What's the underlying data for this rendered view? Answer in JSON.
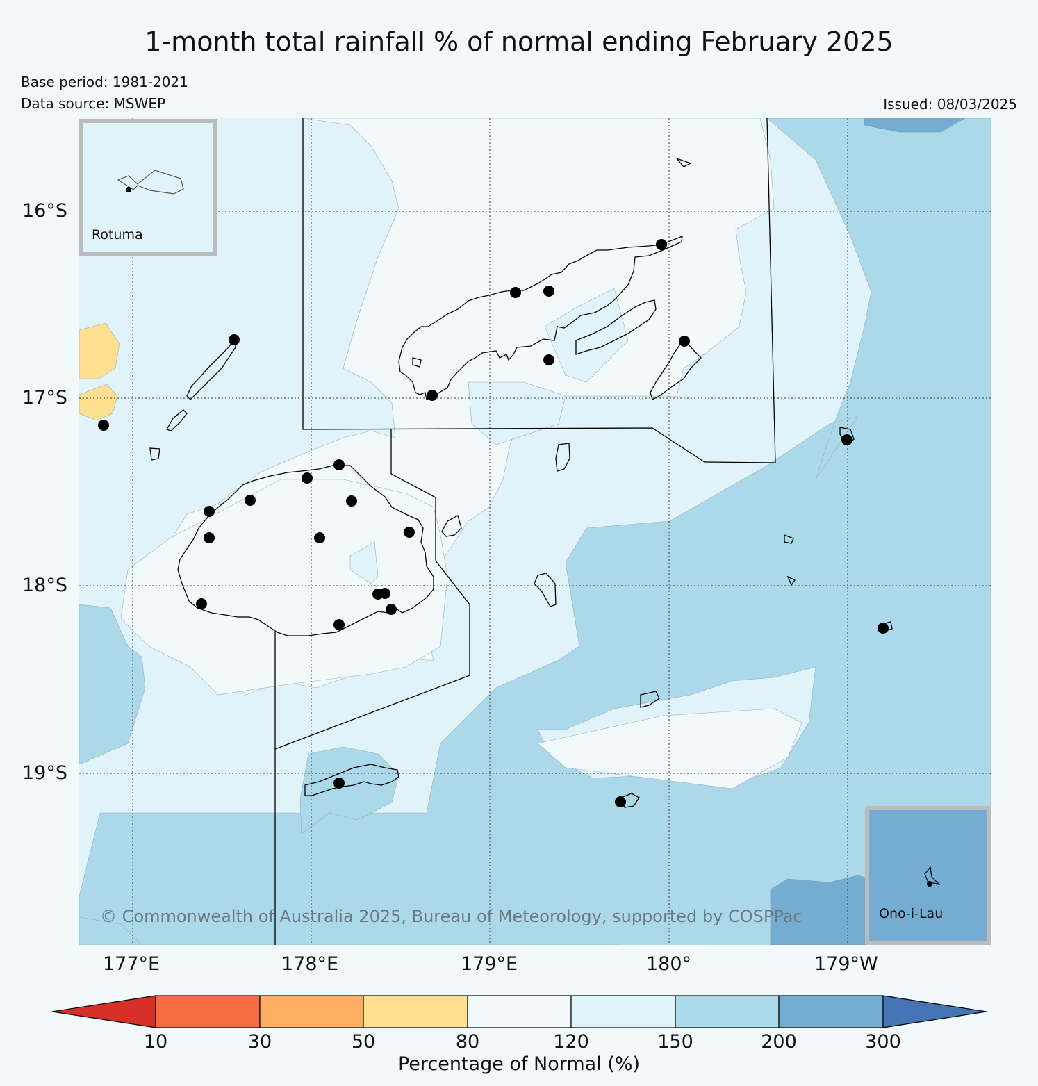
{
  "title": "1-month total rainfall % of normal ending February 2025",
  "base_period": "Base period: 1981-2021",
  "data_source": "Data source: MSWEP",
  "issued": "Issued: 08/03/2025",
  "copyright": "© Commonwealth of Australia 2025, Bureau of Meteorology, supported by COSPPac",
  "lat_labels": [
    "16°S",
    "17°S",
    "18°S",
    "19°S"
  ],
  "lon_labels": [
    "177°E",
    "178°E",
    "179°E",
    "180°",
    "179°W"
  ],
  "insets": {
    "rotuma": "Rotuma",
    "ono_i_lau": "Ono-i-Lau"
  },
  "colorbar": {
    "title": "Percentage of Normal (%)",
    "ticks": [
      "10",
      "30",
      "50",
      "80",
      "120",
      "150",
      "200",
      "300"
    ],
    "colors": [
      "#d73027",
      "#f46d43",
      "#fdae61",
      "#fee090",
      "#f2f9fb",
      "#e0f3f8",
      "#abd9e9",
      "#74add1",
      "#4575b4"
    ]
  },
  "legend_colors": {
    "band_120_150": "#e0f3f8",
    "band_150_200": "#abd9e9",
    "band_200_300": "#74add1",
    "band_50_80": "#fee090",
    "band_80_120": "#f2f9fb"
  }
}
